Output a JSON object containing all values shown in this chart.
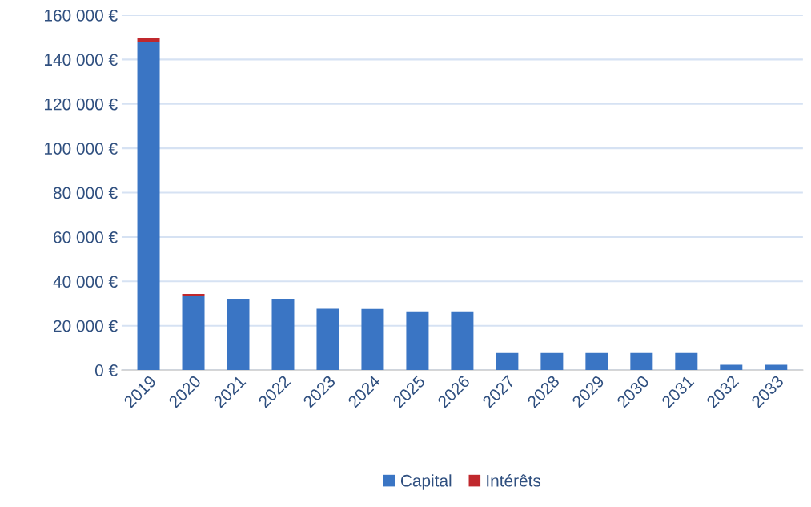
{
  "chart_data": {
    "type": "bar",
    "stacked": true,
    "categories": [
      "2019",
      "2020",
      "2021",
      "2022",
      "2023",
      "2024",
      "2025",
      "2026",
      "2027",
      "2028",
      "2029",
      "2030",
      "2031",
      "2032",
      "2033"
    ],
    "series": [
      {
        "name": "Capital",
        "color": "#3a75c4",
        "values": [
          148000,
          33500,
          32200,
          32200,
          27700,
          27600,
          26500,
          26500,
          7700,
          7700,
          7700,
          7700,
          7700,
          2400,
          2400
        ]
      },
      {
        "name": "Intérêts",
        "color": "#c0282d",
        "values": [
          1500,
          800,
          0,
          0,
          0,
          0,
          0,
          0,
          0,
          0,
          0,
          0,
          0,
          0,
          0
        ]
      }
    ],
    "ylim": [
      0,
      160000
    ],
    "yticks": [
      {
        "value": 0,
        "label": "0 €"
      },
      {
        "value": 20000,
        "label": "20 000 €"
      },
      {
        "value": 40000,
        "label": "40 000 €"
      },
      {
        "value": 60000,
        "label": "60 000 €"
      },
      {
        "value": 80000,
        "label": "80 000 €"
      },
      {
        "value": 100000,
        "label": "100 000 €"
      },
      {
        "value": 120000,
        "label": "120 000 €"
      },
      {
        "value": 140000,
        "label": "140 000 €"
      },
      {
        "value": 160000,
        "label": "160 000 €"
      }
    ],
    "grid": "y",
    "legend": "bottom"
  }
}
